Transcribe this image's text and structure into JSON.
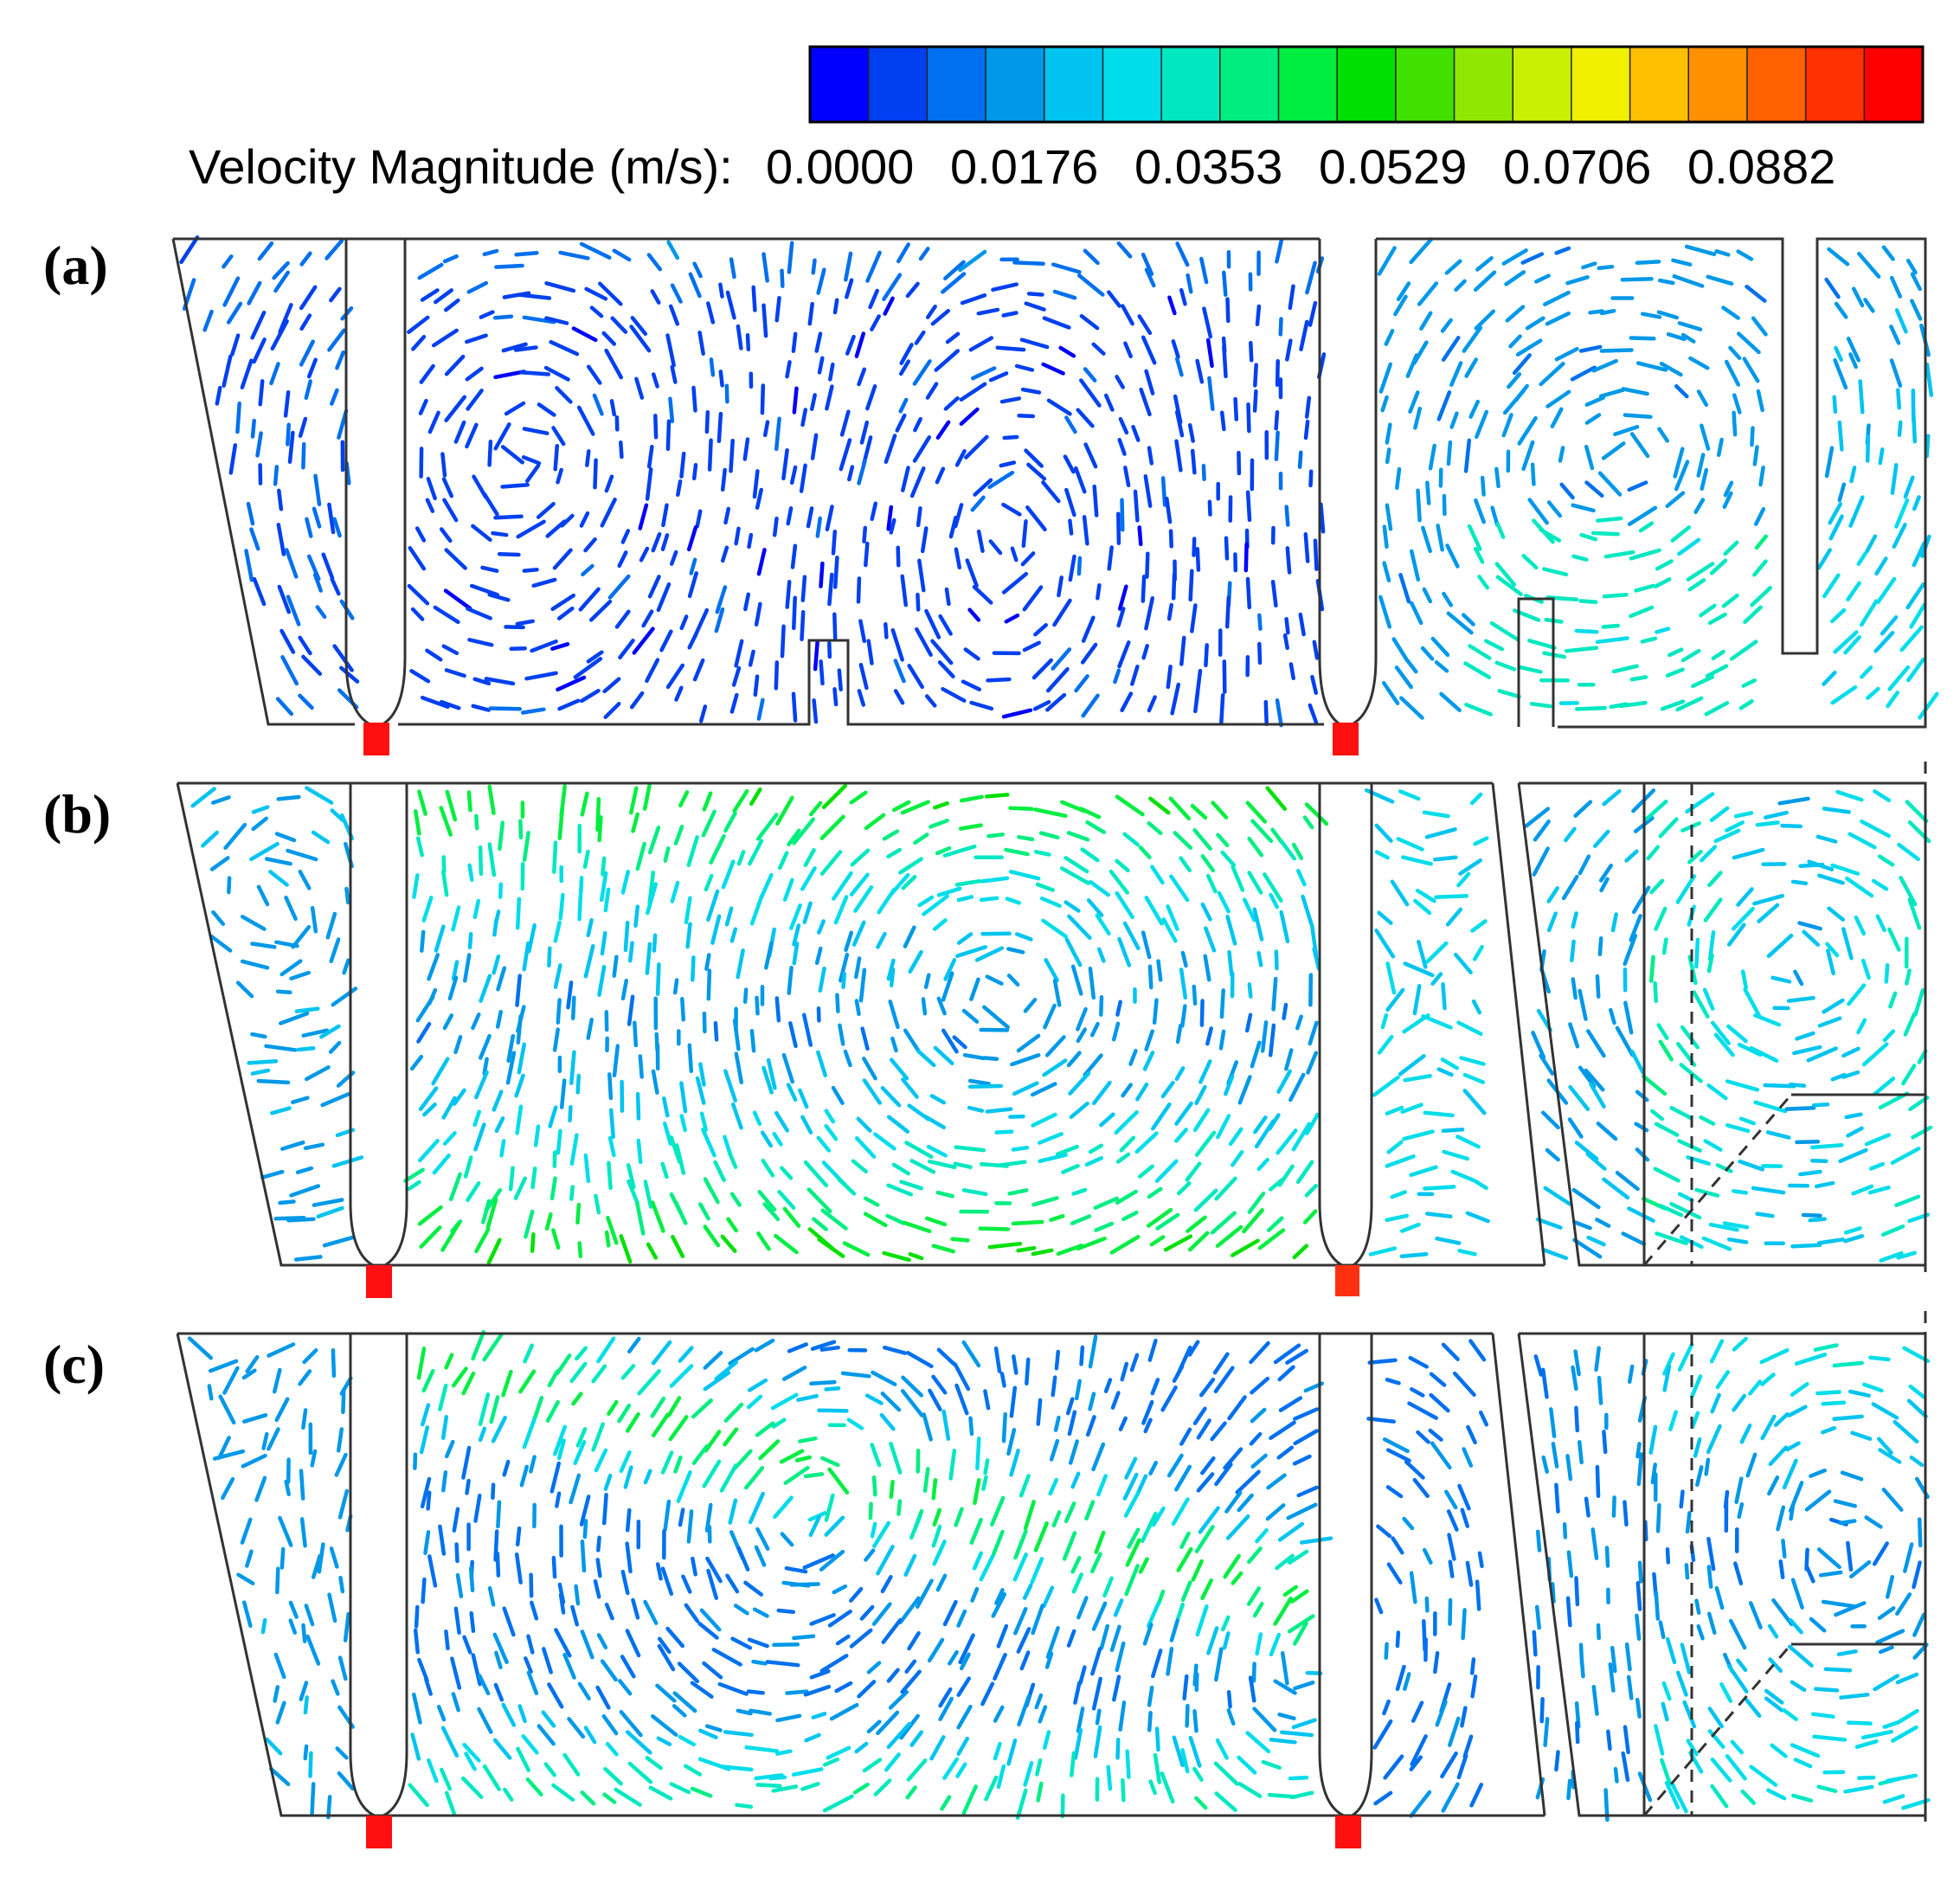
{
  "colorbar": {
    "title": "Velocity Magnitude (m/s):",
    "ticks": [
      "0.0000",
      "0.0176",
      "0.0353",
      "0.0529",
      "0.0706",
      "0.0882"
    ],
    "min": 0.0,
    "max": 0.1058,
    "colors": [
      "#0000ff",
      "#0040f0",
      "#0070ee",
      "#0098e8",
      "#00c4f0",
      "#00ddea",
      "#00e8c0",
      "#00ee80",
      "#00ee40",
      "#00e000",
      "#40e000",
      "#90e800",
      "#c8f000",
      "#f0f000",
      "#ffc000",
      "#ff9000",
      "#ff6000",
      "#ff3000",
      "#ff0000"
    ]
  },
  "panels": [
    {
      "label": "(a)",
      "pattern": "two-vortex",
      "inlets": 2
    },
    {
      "label": "(b)",
      "pattern": "single-vortex",
      "inlets": 2
    },
    {
      "label": "(c)",
      "pattern": "multi-vortex",
      "inlets": 2
    }
  ],
  "icons": {
    "inlet": "red-inlet-marker-icon"
  }
}
